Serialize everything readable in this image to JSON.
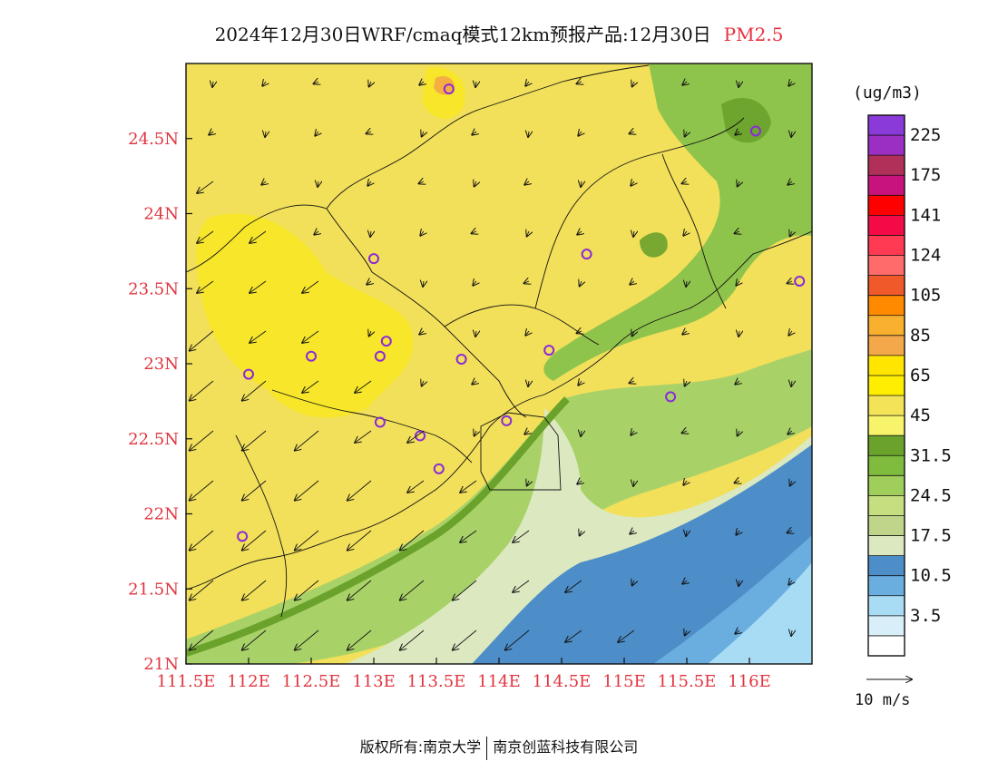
{
  "title": {
    "main": "2024年12月30日WRF/cmaq模式12km预报产品:12月30日",
    "variable": "PM2.5"
  },
  "unit": "(ug/m3)",
  "lat_labels": [
    "21N",
    "21.5N",
    "22N",
    "22.5N",
    "23N",
    "23.5N",
    "24N",
    "24.5N"
  ],
  "lat_values": [
    21,
    21.5,
    22,
    22.5,
    23,
    23.5,
    24,
    24.5
  ],
  "lon_labels": [
    "111.5E",
    "112E",
    "112.5E",
    "113E",
    "113.5E",
    "114E",
    "114.5E",
    "115E",
    "115.5E",
    "116E"
  ],
  "lon_values": [
    111.5,
    112,
    112.5,
    113,
    113.5,
    114,
    114.5,
    115,
    115.5,
    116
  ],
  "extent": {
    "lon_min": 111.5,
    "lon_max": 116.5,
    "lat_min": 21,
    "lat_max": 25
  },
  "colorbar": {
    "labels": [
      "225",
      "175",
      "141",
      "124",
      "105",
      "85",
      "65",
      "45",
      "31.5",
      "24.5",
      "17.5",
      "10.5",
      "3.5"
    ],
    "colors_top_to_bottom": [
      "#8a3ad8",
      "#9b2fc4",
      "#b0305a",
      "#c8127c",
      "#ff0000",
      "#f40a46",
      "#ff3a52",
      "#ff6a6a",
      "#f05a2a",
      "#ff8a00",
      "#f8b02e",
      "#f5a84a",
      "#ffe500",
      "#ffee00",
      "#f3e358",
      "#f7f46c",
      "#6aa22c",
      "#7fbb3c",
      "#9fce5a",
      "#c4de80",
      "#bfd68a",
      "#dce9c0",
      "#4e8ec8",
      "#6aaee0",
      "#a8dcf4",
      "#d8eef8",
      "#ffffff"
    ]
  },
  "wind_reference": "10 m/s",
  "footer": {
    "left": "版权所有:南京大学",
    "right": "南京创蓝科技有限公司"
  },
  "field_colors": {
    "pm_45_65": "#f2df5a",
    "pm_high": "#f7e62a",
    "pm_65": "#ffe500",
    "pm_85": "#f5ae40",
    "pm_31": "#6aa22c",
    "pm_24": "#8fc44c",
    "pm_24b": "#a8d268",
    "pm_17": "#c4de80",
    "pm_10": "#dce9c0",
    "sea_dark": "#4e8ec8",
    "sea_mid": "#6aaee0",
    "sea_light": "#a8dcf4"
  },
  "city_markers": [
    {
      "lon": 113.6,
      "lat": 24.83
    },
    {
      "lon": 116.05,
      "lat": 24.55
    },
    {
      "lon": 113.0,
      "lat": 23.7
    },
    {
      "lon": 114.7,
      "lat": 23.73
    },
    {
      "lon": 116.4,
      "lat": 23.55
    },
    {
      "lon": 112.5,
      "lat": 23.05
    },
    {
      "lon": 113.05,
      "lat": 23.05
    },
    {
      "lon": 113.1,
      "lat": 23.15
    },
    {
      "lon": 113.7,
      "lat": 23.03
    },
    {
      "lon": 114.4,
      "lat": 23.09
    },
    {
      "lon": 112.0,
      "lat": 22.93
    },
    {
      "lon": 115.37,
      "lat": 22.78
    },
    {
      "lon": 113.05,
      "lat": 22.61
    },
    {
      "lon": 113.37,
      "lat": 22.52
    },
    {
      "lon": 114.06,
      "lat": 22.62
    },
    {
      "lon": 113.52,
      "lat": 22.3
    },
    {
      "lon": 111.95,
      "lat": 21.85
    }
  ]
}
